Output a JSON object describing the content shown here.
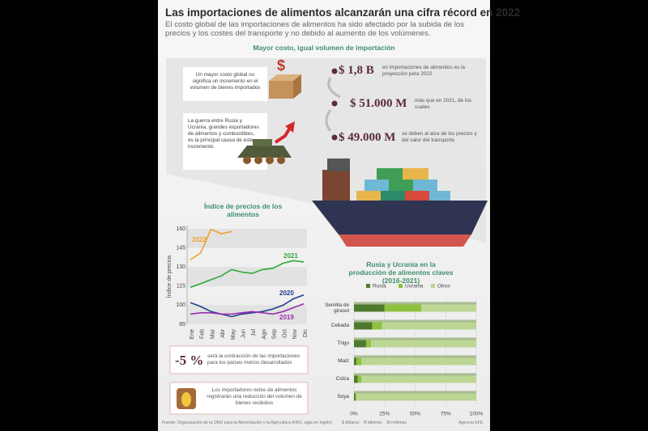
{
  "header": {
    "title": "Las importaciones de alimentos alcanzarán una cifra récord en 2022",
    "subtitle": "El costo global de las importaciones de alimentos ha sido afectado por la subida de los precios y los costes del transporte y no debido al aumento de los volúmenes.",
    "section": "Mayor costo, igual volumen de importación"
  },
  "notes": [
    "Un mayor costo global no significa un incremento en el volumen de bienes importados",
    "La guerra entre Rusia y Ucrania, grandes exportadores de alimentos y combustibles, es la principal causa de este incremento"
  ],
  "facts": [
    {
      "amount": "$ 1,8 B",
      "text": "en importaciones de alimentos es la proyección para 2022"
    },
    {
      "amount": "$ 51.000 M",
      "text": "más que en 2021, de los cuales"
    },
    {
      "amount": "$ 49.000 M",
      "text": "se deben al alza de los precios y del valor del transporte"
    }
  ],
  "callouts": [
    {
      "amount": "-5 %",
      "text": "será la contracción de las importaciones para los países menos desarrollados"
    },
    {
      "text": "Los importadores netos de alimentos registrarán una reducción del volumen de bienes recibidos"
    }
  ],
  "footer": {
    "source": "Fuente: Organización de la ONU para la Alimentación y la Agricultura (FAO, sigla en inglés)",
    "units": "$ dólares    B billones    M millones",
    "credit": "Agencia EFE"
  },
  "chart_data": [
    {
      "type": "line",
      "title": "Índice de precios de los alimentos",
      "ylabel": "Índice de precios",
      "categories": [
        "Ene",
        "Feb",
        "Mar",
        "Abr",
        "May",
        "Jun",
        "Jul",
        "Ago",
        "Sep",
        "Oct",
        "Nov",
        "Dic"
      ],
      "series": [
        {
          "name": "2022",
          "color": "#f0a030",
          "values": [
            135.6,
            141.1,
            159.7,
            156.2,
            157.9,
            null,
            null,
            null,
            null,
            null,
            null,
            null
          ]
        },
        {
          "name": "2021",
          "color": "#2ea83a",
          "values": [
            114,
            117,
            120,
            123,
            128,
            126,
            125,
            128,
            129,
            133,
            135,
            134
          ]
        },
        {
          "name": "2020",
          "color": "#1f3e8f",
          "values": [
            102,
            99,
            95,
            93,
            91,
            93,
            94,
            95,
            97,
            100,
            105,
            108
          ]
        },
        {
          "name": "2019",
          "color": "#9a2fb0",
          "values": [
            93,
            94,
            94,
            93,
            93,
            94,
            95,
            94,
            93,
            95,
            98,
            101
          ]
        }
      ],
      "ylim": [
        85,
        160
      ],
      "yticks": [
        85,
        100,
        115,
        130,
        145,
        160
      ],
      "grid": true
    },
    {
      "type": "bar",
      "orientation": "horizontal",
      "stacked": true,
      "title": "Rusia y Ucrania en la producción de alimentos claves (2016-2021)",
      "categories": [
        "Semilla de girasol",
        "Cebada",
        "Trigo",
        "Maíz",
        "Colza",
        "Soya"
      ],
      "series": [
        {
          "name": "Rusia",
          "color": "#4e7a2e",
          "values": [
            25,
            15,
            10,
            2,
            3,
            1
          ]
        },
        {
          "name": "Ucrania",
          "color": "#8dc13f",
          "values": [
            30,
            8,
            4,
            4,
            3,
            1
          ]
        },
        {
          "name": "Otros",
          "color": "#bcd693",
          "values": [
            45,
            77,
            86,
            94,
            94,
            98
          ]
        }
      ],
      "xlim": [
        0,
        100
      ],
      "xticks": [
        {
          "value": 0,
          "label": "0%"
        },
        {
          "value": 25,
          "label": "25%"
        },
        {
          "value": 50,
          "label": "50%"
        },
        {
          "value": 75,
          "label": "75%"
        },
        {
          "value": 100,
          "label": "100%"
        }
      ],
      "grid": true
    }
  ]
}
